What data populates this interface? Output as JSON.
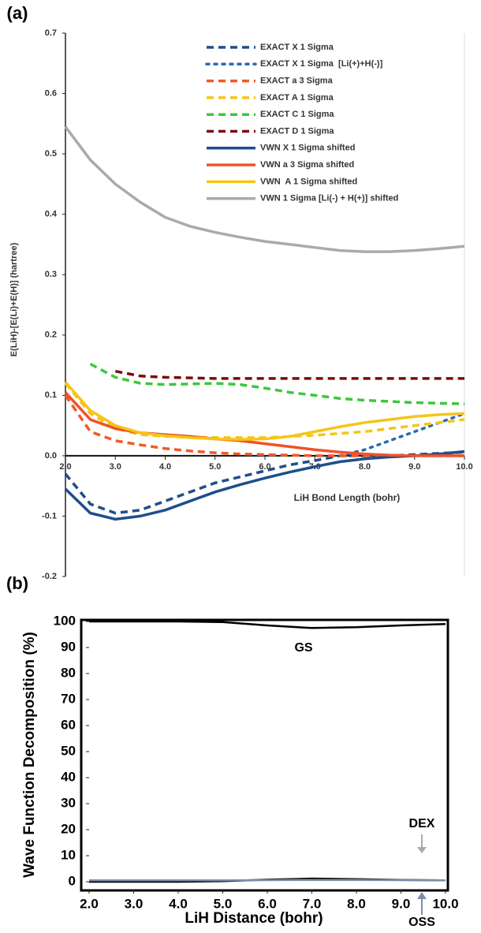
{
  "chart_data": [
    {
      "type": "line",
      "panel_label": "(a)",
      "x_label": "LiH Bond Length (bohr)",
      "y_label": "E(LiH)-[E(Li)+E(H)] (hartree)",
      "x": [
        2.0,
        2.5,
        3.0,
        3.5,
        4.0,
        4.5,
        5.0,
        5.5,
        6.0,
        6.5,
        7.0,
        7.5,
        8.0,
        8.5,
        9.0,
        9.5,
        10.0
      ],
      "xlim": [
        2.0,
        10.0
      ],
      "xticks": [
        {
          "value": 2,
          "label": "2.0"
        },
        {
          "value": 3,
          "label": "3.0"
        },
        {
          "value": 4,
          "label": "4.0"
        },
        {
          "value": 5,
          "label": "5.0"
        },
        {
          "value": 6,
          "label": "6.0"
        },
        {
          "value": 7,
          "label": "7.0"
        },
        {
          "value": 8,
          "label": "8.0"
        },
        {
          "value": 9,
          "label": "9.0"
        },
        {
          "value": 10,
          "label": "10.0"
        }
      ],
      "ylim": [
        -0.2,
        0.7
      ],
      "yticks": [
        -0.2,
        -0.1,
        {
          "value": 0,
          "label": "0.0"
        },
        0.1,
        0.2,
        0.3,
        0.4,
        0.5,
        0.6,
        0.7
      ],
      "legend": true,
      "series": [
        {
          "name": "EXACT X 1 Sigma",
          "color": "#1f4e8c",
          "dash": "dashed",
          "values": [
            -0.03,
            -0.08,
            -0.095,
            -0.09,
            -0.075,
            -0.06,
            -0.045,
            -0.035,
            -0.025,
            -0.015,
            -0.008,
            0.0,
            0.0,
            0.0,
            0.002,
            0.004,
            0.006
          ]
        },
        {
          "name": "EXACT X 1 Sigma  [Li(+)+H(-)]",
          "color": "#2a6ab0",
          "dash": "dotted",
          "values": [
            null,
            null,
            null,
            null,
            null,
            null,
            null,
            null,
            null,
            null,
            null,
            0.0,
            0.01,
            0.025,
            0.04,
            0.055,
            0.07
          ]
        },
        {
          "name": "EXACT a 3 Sigma",
          "color": "#f05a28",
          "dash": "dashed",
          "values": [
            0.1,
            0.04,
            0.025,
            0.018,
            0.012,
            0.008,
            0.005,
            0.003,
            0.002,
            0.001,
            0.0,
            0.0,
            0.0,
            0.0,
            0.0,
            0.0,
            0.0
          ]
        },
        {
          "name": "EXACT A 1 Sigma",
          "color": "#f5c518",
          "dash": "dashed",
          "values": [
            0.12,
            0.07,
            0.045,
            0.035,
            0.032,
            0.031,
            0.03,
            0.03,
            0.03,
            0.032,
            0.034,
            0.037,
            0.04,
            0.045,
            0.05,
            0.055,
            0.06
          ]
        },
        {
          "name": "EXACT C 1 Sigma",
          "color": "#3cc83c",
          "dash": "dashed",
          "values": [
            null,
            0.152,
            0.13,
            0.12,
            0.118,
            0.119,
            0.12,
            0.118,
            0.112,
            0.105,
            0.1,
            0.095,
            0.092,
            0.09,
            0.088,
            0.087,
            0.086
          ]
        },
        {
          "name": "EXACT D 1 Sigma",
          "color": "#7b0c0c",
          "dash": "dashed",
          "values": [
            null,
            null,
            0.14,
            0.132,
            0.13,
            0.129,
            0.128,
            0.128,
            0.128,
            0.128,
            0.128,
            0.128,
            0.128,
            0.128,
            0.128,
            0.128,
            0.128
          ]
        },
        {
          "name": "VWN X 1 Sigma shifted",
          "color": "#1f4e8c",
          "dash": "solid",
          "values": [
            -0.055,
            -0.095,
            -0.105,
            -0.1,
            -0.09,
            -0.075,
            -0.06,
            -0.048,
            -0.037,
            -0.027,
            -0.018,
            -0.01,
            -0.005,
            -0.002,
            0.0,
            0.003,
            0.007
          ]
        },
        {
          "name": "VWN a 3 Sigma shifted",
          "color": "#f0522a",
          "dash": "solid",
          "values": [
            0.105,
            0.06,
            0.045,
            0.038,
            0.035,
            0.032,
            0.028,
            0.025,
            0.02,
            0.015,
            0.01,
            0.006,
            0.003,
            0.001,
            0.0,
            0.0,
            0.0
          ]
        },
        {
          "name": "VWN  A 1 Sigma shifted",
          "color": "#f5c518",
          "dash": "solid",
          "values": [
            0.122,
            0.075,
            0.05,
            0.038,
            0.033,
            0.03,
            0.028,
            0.027,
            0.028,
            0.032,
            0.04,
            0.048,
            0.055,
            0.06,
            0.065,
            0.068,
            0.07
          ]
        },
        {
          "name": "VWN 1 Sigma [Li(-) + H(+)] shifted",
          "color": "#aaaaaa",
          "dash": "solid",
          "values": [
            0.545,
            0.49,
            0.45,
            0.42,
            0.395,
            0.38,
            0.37,
            0.362,
            0.355,
            0.35,
            0.345,
            0.34,
            0.338,
            0.338,
            0.34,
            0.343,
            0.347
          ]
        }
      ]
    },
    {
      "type": "line",
      "panel_label": "(b)",
      "x_label": "LiH Distance (bohr)",
      "y_label": "Wave Function Decomposition (%)",
      "x": [
        2.0,
        3.0,
        4.0,
        5.0,
        6.0,
        7.0,
        8.0,
        9.0,
        10.0
      ],
      "xlim": [
        2.0,
        10.0
      ],
      "xticks": [
        {
          "value": 2,
          "label": "2.0"
        },
        {
          "value": 3,
          "label": "3.0"
        },
        {
          "value": 4,
          "label": "4.0"
        },
        {
          "value": 5,
          "label": "5.0"
        },
        {
          "value": 6,
          "label": "6.0"
        },
        {
          "value": 7,
          "label": "7.0"
        },
        {
          "value": 8,
          "label": "8.0"
        },
        {
          "value": 9,
          "label": "9.0"
        },
        {
          "value": 10,
          "label": "10.0"
        }
      ],
      "ylim": [
        0,
        100
      ],
      "yticks": [
        0,
        10,
        20,
        30,
        40,
        50,
        60,
        70,
        80,
        90,
        100
      ],
      "legend": false,
      "series": [
        {
          "name": "GS",
          "color": "#000000",
          "dash": "solid",
          "values": [
            100,
            100,
            100,
            99.8,
            98.5,
            97.5,
            97.8,
            98.5,
            99
          ]
        },
        {
          "name": "DEX",
          "color": "#000000",
          "dash": "solid",
          "values": [
            0,
            0,
            0,
            0.2,
            0.8,
            1.2,
            1.0,
            0.7,
            0.5
          ]
        },
        {
          "name": "OSS",
          "color": "#7a8ea8",
          "dash": "solid",
          "values": [
            0.5,
            0.5,
            0.5,
            0.5,
            0.6,
            0.7,
            0.7,
            0.6,
            0.5
          ]
        }
      ]
    }
  ]
}
